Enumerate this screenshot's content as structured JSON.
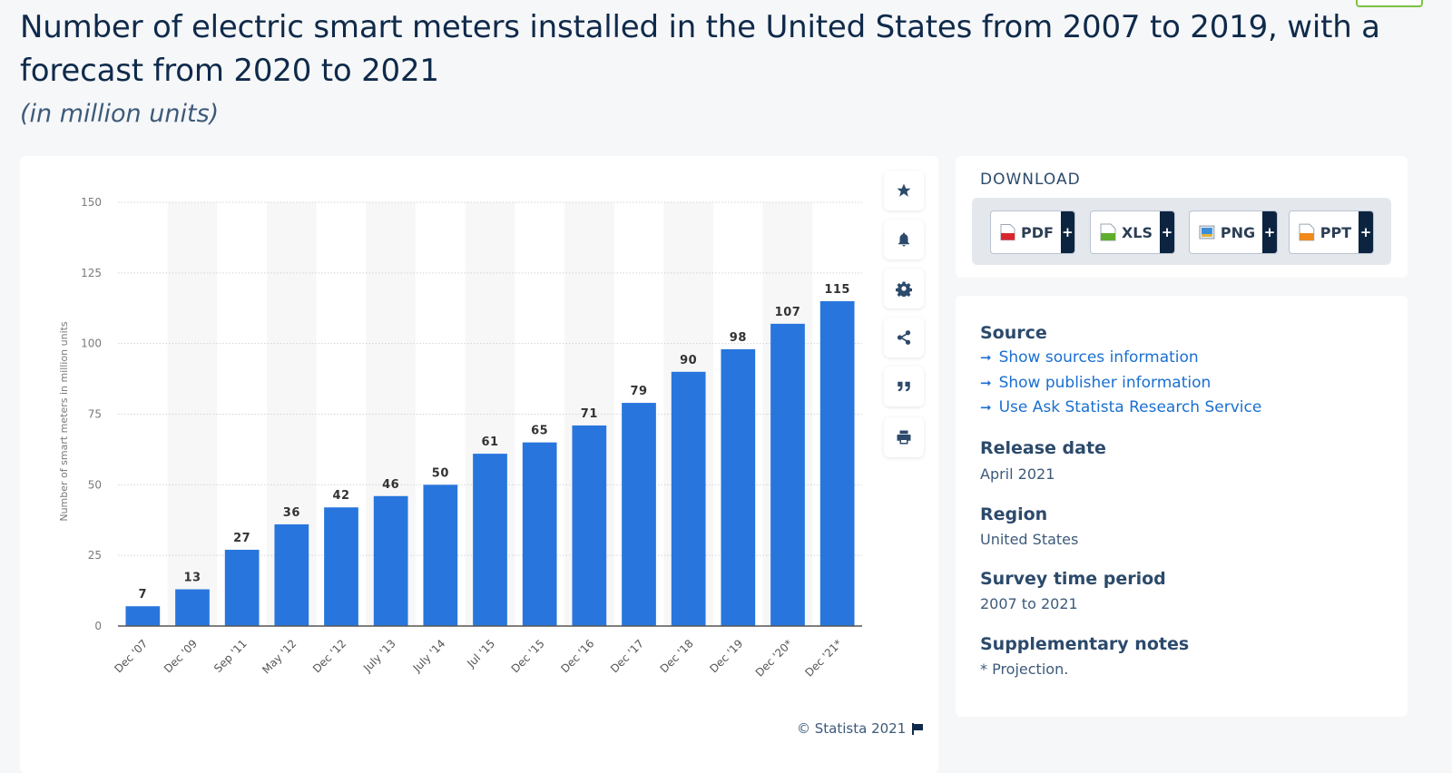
{
  "page": {
    "title": "Number of electric smart meters installed in the United States from 2007 to 2019, with a forecast from 2020 to 2021",
    "subtitle": "(in million units)"
  },
  "chart_data": {
    "type": "bar",
    "title": "Number of electric smart meters installed in the United States from 2007 to 2019, with a forecast from 2020 to 2021",
    "subtitle": "(in million units)",
    "xlabel": "",
    "ylabel": "Number of smart meters in million units",
    "categories": [
      "Dec '07",
      "Dec '09",
      "Sep '11",
      "May '12",
      "Dec '12",
      "July '13",
      "July '14",
      "Jul '15",
      "Dec '15",
      "Dec '16",
      "Dec '17",
      "Dec '18",
      "Dec '19",
      "Dec '20*",
      "Dec '21*"
    ],
    "values": [
      7,
      13,
      27,
      36,
      42,
      46,
      50,
      61,
      65,
      71,
      79,
      90,
      98,
      107,
      115
    ],
    "data_labels": [
      "7",
      "13",
      "27",
      "36",
      "42",
      "46",
      "50",
      "61",
      "65",
      "71",
      "79",
      "90",
      "98",
      "107",
      "115"
    ],
    "ylim": [
      0,
      150
    ],
    "yticks": [
      0,
      25,
      50,
      75,
      100,
      125,
      150
    ],
    "ytick_labels": [
      "0",
      "25",
      "50",
      "75",
      "100",
      "125",
      "150"
    ],
    "grid": true,
    "legend": "none",
    "bar_color": "#2876dd"
  },
  "chart_tools": [
    {
      "name": "star-icon",
      "label": "Favorite"
    },
    {
      "name": "bell-icon",
      "label": "Notifications"
    },
    {
      "name": "gear-icon",
      "label": "Settings"
    },
    {
      "name": "share-icon",
      "label": "Share"
    },
    {
      "name": "quote-icon",
      "label": "Cite"
    },
    {
      "name": "print-icon",
      "label": "Print"
    }
  ],
  "copyright": "© Statista 2021",
  "download": {
    "title": "DOWNLOAD",
    "buttons": [
      {
        "label": "PDF",
        "icon": "pdf-file-icon",
        "color": "#d9262c",
        "plus": "+"
      },
      {
        "label": "XLS",
        "icon": "xls-file-icon",
        "color": "#5fae2e",
        "plus": "+"
      },
      {
        "label": "PNG",
        "icon": "png-file-icon",
        "color": "#3a8fd8",
        "plus": "+"
      },
      {
        "label": "PPT",
        "icon": "ppt-file-icon",
        "color": "#f08a1c",
        "plus": "+"
      }
    ]
  },
  "info": {
    "source_heading": "Source",
    "links": [
      "Show sources information",
      "Show publisher information",
      "Use Ask Statista Research Service"
    ],
    "release_heading": "Release date",
    "release_value": "April 2021",
    "region_heading": "Region",
    "region_value": "United States",
    "survey_heading": "Survey time period",
    "survey_value": "2007 to 2021",
    "notes_heading": "Supplementary notes",
    "notes_value": "* Projection."
  }
}
